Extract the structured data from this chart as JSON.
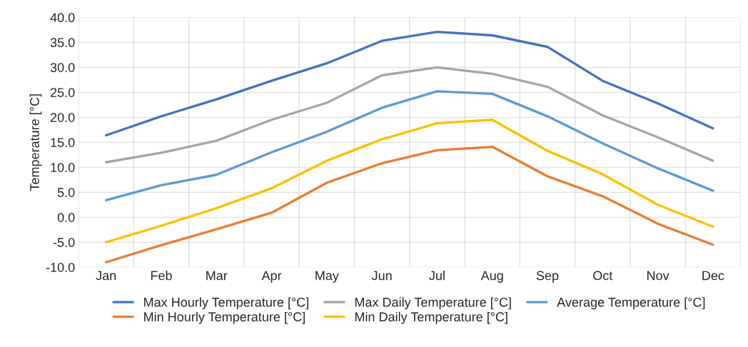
{
  "chart_data": {
    "type": "line",
    "ylabel": "Temperature [°C]",
    "categories": [
      "Jan",
      "Feb",
      "Mar",
      "Apr",
      "May",
      "Jun",
      "Jul",
      "Aug",
      "Sep",
      "Oct",
      "Nov",
      "Dec"
    ],
    "series": [
      {
        "name": "Max Hourly Temperature [°C]",
        "color": "#4472c4",
        "values": [
          16.4,
          20.2,
          23.6,
          27.3,
          30.8,
          35.3,
          37.1,
          36.4,
          34.1,
          27.3,
          22.8,
          17.8
        ]
      },
      {
        "name": "Min Hourly Temperature [°C]",
        "color": "#ed7d31",
        "values": [
          -9.0,
          -5.6,
          -2.4,
          0.9,
          6.9,
          10.8,
          13.4,
          14.1,
          8.2,
          4.2,
          -1.3,
          -5.5
        ]
      },
      {
        "name": "Max Daily Temperature [°C]",
        "color": "#a5a5a5",
        "values": [
          11.0,
          12.9,
          15.3,
          19.5,
          22.9,
          28.4,
          30.0,
          28.7,
          26.1,
          20.4,
          16.0,
          11.3
        ]
      },
      {
        "name": "Min Daily Temperature [°C]",
        "color": "#ffc000",
        "values": [
          -5.0,
          -1.7,
          1.8,
          5.8,
          11.3,
          15.6,
          18.8,
          19.5,
          13.3,
          8.6,
          2.5,
          -1.9
        ]
      },
      {
        "name": "Average Temperature [°C]",
        "color": "#5b9bd5",
        "values": [
          3.4,
          6.4,
          8.5,
          13.0,
          17.1,
          21.9,
          25.2,
          24.7,
          20.2,
          14.8,
          9.8,
          5.3
        ]
      }
    ],
    "ylim": [
      -10,
      40
    ],
    "yticks": [
      {
        "value": -10,
        "label": "-10.0"
      },
      {
        "value": -5,
        "label": "-5.0"
      },
      {
        "value": 0,
        "label": "0.0"
      },
      {
        "value": 5,
        "label": "5.0"
      },
      {
        "value": 10,
        "label": "10.0"
      },
      {
        "value": 15,
        "label": "15.0"
      },
      {
        "value": 20,
        "label": "20.0"
      },
      {
        "value": 25,
        "label": "25.0"
      },
      {
        "value": 30,
        "label": "30.0"
      },
      {
        "value": 35,
        "label": "35.0"
      },
      {
        "value": 40,
        "label": "40.0"
      }
    ],
    "grid": true,
    "legend": "bottom",
    "marker": "none",
    "line_style": "solid"
  }
}
